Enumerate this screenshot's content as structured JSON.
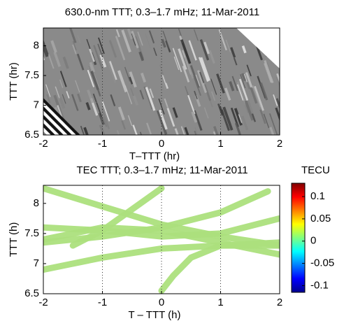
{
  "chart_data": [
    {
      "type": "image",
      "title": "630.0-nm TTT; 0.3–1.7 mHz; 11-Mar-2011",
      "x_label": "T–TTT (hr)",
      "y_label": "TTT (hr)",
      "xlim": [
        -2,
        2
      ],
      "ylim": [
        6.5,
        8.3
      ],
      "xticks": [
        -2,
        -1,
        0,
        1,
        2
      ],
      "yticks": [
        6.5,
        7,
        7.5,
        8
      ],
      "xgrid": true
    },
    {
      "type": "tracks",
      "title": "TEC TTT; 0.3–1.7 mHz; 11-Mar-2011",
      "x_label": "T – TTT (h)",
      "y_label": "TTT (h)",
      "xlim": [
        -2,
        2
      ],
      "ylim": [
        6.5,
        8.3
      ],
      "xticks": [
        -2,
        -1,
        0,
        1,
        2
      ],
      "yticks": [
        6.5,
        7,
        7.5,
        8
      ],
      "xgrid": true,
      "series": [
        {
          "x": [
            -2,
            -1,
            0,
            1,
            2
          ],
          "y": [
            8.25,
            7.95,
            7.65,
            7.45,
            7.3
          ]
        },
        {
          "x": [
            -2,
            -1,
            0,
            1,
            1.8
          ],
          "y": [
            7.35,
            7.45,
            7.6,
            7.85,
            8.2
          ]
        },
        {
          "x": [
            -1.5,
            -1,
            -0.5,
            0
          ],
          "y": [
            7.3,
            7.55,
            7.9,
            8.25
          ]
        },
        {
          "x": [
            -2,
            -1,
            0,
            1,
            2
          ],
          "y": [
            6.9,
            7.1,
            7.25,
            7.3,
            7.3
          ]
        },
        {
          "x": [
            -2,
            -1,
            0,
            1,
            2
          ],
          "y": [
            7.6,
            7.55,
            7.45,
            7.5,
            7.75
          ]
        },
        {
          "x": [
            0,
            0.2,
            0.5,
            1,
            2
          ],
          "y": [
            6.55,
            6.8,
            7.1,
            7.3,
            7.35
          ]
        },
        {
          "x": [
            -2,
            -1,
            0,
            1,
            2
          ],
          "y": [
            7.4,
            7.6,
            7.55,
            7.35,
            7.15
          ]
        }
      ],
      "colorbar": {
        "label": "TECU",
        "lim": [
          -0.115,
          0.13
        ],
        "ticks": [
          -0.1,
          -0.05,
          0,
          0.05,
          0.1
        ]
      }
    }
  ]
}
